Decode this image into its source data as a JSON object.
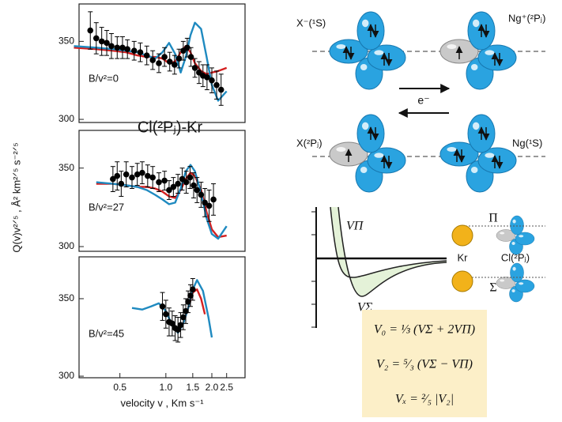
{
  "figure_title": "Cl(²Pⱼ)-Kr",
  "y_label": "Q(v)v²ᐟ⁵ , Å² km²ᐟ⁵ s⁻²ᐟ⁵",
  "chart_data": [
    {
      "type": "line",
      "annotation": "B/v²=0",
      "xscale": "log",
      "xlim": [
        0.27,
        3.3
      ],
      "ylim": [
        298,
        374
      ],
      "yticks": [
        300,
        350
      ],
      "series": [
        {
          "mode": "markers",
          "color": "#000000",
          "x": [
            0.32,
            0.35,
            0.38,
            0.41,
            0.44,
            0.48,
            0.52,
            0.56,
            0.62,
            0.68,
            0.75,
            0.82,
            0.9,
            0.98,
            1.06,
            1.14,
            1.22,
            1.3,
            1.38,
            1.46,
            1.55,
            1.65,
            1.75,
            1.86,
            2.0,
            2.15,
            2.3
          ],
          "values": [
            357,
            352,
            350,
            349,
            347,
            346,
            346,
            345,
            344,
            343,
            341,
            338,
            336,
            340,
            337,
            335,
            339,
            344,
            346,
            340,
            333,
            330,
            328,
            327,
            325,
            322,
            319
          ],
          "errors": [
            12,
            10,
            9,
            8,
            8,
            7,
            7,
            6,
            6,
            6,
            6,
            6,
            6,
            6,
            6,
            6,
            6,
            6,
            6,
            6,
            6,
            7,
            7,
            8,
            8,
            9,
            10
          ]
        },
        {
          "mode": "lines",
          "color": "#d42020",
          "x": [
            0.25,
            0.35,
            0.45,
            0.55,
            0.65,
            0.75,
            0.85,
            0.95,
            1.05,
            1.15,
            1.25,
            1.35,
            1.45,
            1.55,
            1.7,
            1.85,
            2.0,
            2.2,
            2.5
          ],
          "values": [
            346,
            345,
            344,
            343,
            341,
            340,
            340,
            339,
            336,
            337,
            343,
            347,
            343,
            336,
            331,
            329,
            330,
            331,
            333
          ]
        },
        {
          "mode": "lines",
          "color": "#1f8ac0",
          "x": [
            0.25,
            0.35,
            0.45,
            0.55,
            0.65,
            0.75,
            0.85,
            0.95,
            1.05,
            1.15,
            1.25,
            1.35,
            1.45,
            1.55,
            1.7,
            1.85,
            2.0,
            2.2,
            2.5
          ],
          "values": [
            347,
            346,
            345,
            344,
            343,
            341,
            339,
            343,
            349,
            342,
            330,
            340,
            354,
            362,
            358,
            340,
            322,
            312,
            318
          ]
        }
      ]
    },
    {
      "type": "line",
      "annotation": "B/v²=27",
      "xscale": "log",
      "xlim": [
        0.27,
        3.3
      ],
      "ylim": [
        297,
        374
      ],
      "yticks": [
        300,
        350
      ],
      "series": [
        {
          "mode": "markers",
          "color": "#000000",
          "x": [
            0.45,
            0.48,
            0.51,
            0.55,
            0.6,
            0.65,
            0.7,
            0.76,
            0.82,
            0.9,
            0.98,
            1.05,
            1.12,
            1.2,
            1.28,
            1.36,
            1.44,
            1.52,
            1.6,
            1.7,
            1.8,
            1.92,
            2.05
          ],
          "values": [
            343,
            345,
            340,
            346,
            344,
            346,
            347,
            345,
            344,
            341,
            342,
            336,
            338,
            340,
            343,
            341,
            344,
            339,
            336,
            333,
            328,
            326,
            330
          ],
          "errors": [
            8,
            9,
            8,
            8,
            7,
            7,
            7,
            7,
            7,
            6,
            6,
            6,
            6,
            6,
            7,
            7,
            7,
            8,
            8,
            8,
            9,
            10,
            10
          ]
        },
        {
          "mode": "lines",
          "color": "#d42020",
          "x": [
            0.35,
            0.45,
            0.55,
            0.65,
            0.75,
            0.85,
            0.95,
            1.05,
            1.15,
            1.25,
            1.35,
            1.45,
            1.55,
            1.7,
            1.85,
            2.0,
            2.2,
            2.5
          ],
          "values": [
            340,
            340,
            339,
            338,
            338,
            337,
            335,
            332,
            331,
            336,
            343,
            347,
            345,
            336,
            322,
            311,
            306,
            307
          ]
        },
        {
          "mode": "lines",
          "color": "#1f8ac0",
          "x": [
            0.35,
            0.45,
            0.55,
            0.65,
            0.75,
            0.85,
            0.95,
            1.05,
            1.15,
            1.25,
            1.35,
            1.45,
            1.55,
            1.7,
            1.85,
            2.0,
            2.2,
            2.5
          ],
          "values": [
            341,
            340,
            339,
            338,
            336,
            333,
            330,
            327,
            328,
            337,
            348,
            352,
            348,
            334,
            318,
            308,
            305,
            313
          ]
        }
      ]
    },
    {
      "type": "line",
      "annotation": "B/v²=45",
      "xscale": "log",
      "xlim": [
        0.27,
        3.3
      ],
      "ylim": [
        299,
        377
      ],
      "yticks": [
        300,
        350
      ],
      "xticks": [
        {
          "value": 0.5,
          "label": "0.5"
        },
        {
          "value": 1,
          "label": "1.0"
        },
        {
          "value": 1.5,
          "label": "1.5"
        },
        {
          "value": 2,
          "label": "2.0"
        },
        {
          "value": 2.5,
          "label": "2.5"
        }
      ],
      "xlabel": "velocity v , Km s⁻¹",
      "series": [
        {
          "mode": "markers",
          "color": "#000000",
          "x": [
            0.95,
            1.0,
            1.05,
            1.1,
            1.15,
            1.2,
            1.25,
            1.3,
            1.35,
            1.4,
            1.45,
            1.5
          ],
          "values": [
            345,
            340,
            335,
            334,
            331,
            330,
            333,
            338,
            342,
            348,
            352,
            356
          ],
          "errors": [
            9,
            9,
            9,
            8,
            8,
            8,
            8,
            8,
            8,
            7,
            7,
            7
          ]
        },
        {
          "mode": "lines",
          "color": "#d42020",
          "x": [
            1.3,
            1.4,
            1.5,
            1.6,
            1.7,
            1.8
          ],
          "values": [
            334,
            344,
            354,
            356,
            350,
            340
          ]
        },
        {
          "mode": "lines",
          "color": "#1f8ac0",
          "x": [
            0.6,
            0.7,
            0.8,
            0.9,
            1.0,
            1.1,
            1.2,
            1.3,
            1.4,
            1.5,
            1.6,
            1.75,
            1.9,
            2.0
          ],
          "values": [
            344,
            343,
            345,
            347,
            342,
            333,
            328,
            334,
            344,
            356,
            362,
            355,
            338,
            325
          ]
        }
      ]
    }
  ],
  "diagram": {
    "states": [
      "X⁻(¹S)",
      "Ng⁺(²Pⱼ)",
      "X(²Pⱼ)",
      "Ng(¹S)"
    ],
    "electron": "e⁻",
    "potentials": [
      "VΠ",
      "VΣ"
    ],
    "atoms": [
      "Kr",
      "Cl(²Pⱼ)"
    ],
    "symmetries": [
      "Π",
      "Σ"
    ],
    "equations": [
      "V₀ = ⅓ (VΣ + 2VΠ)",
      "V₂ = ⁵⁄₃ (VΣ − VΠ)",
      "Vₓ = ²⁄₅ |V₂|"
    ]
  }
}
